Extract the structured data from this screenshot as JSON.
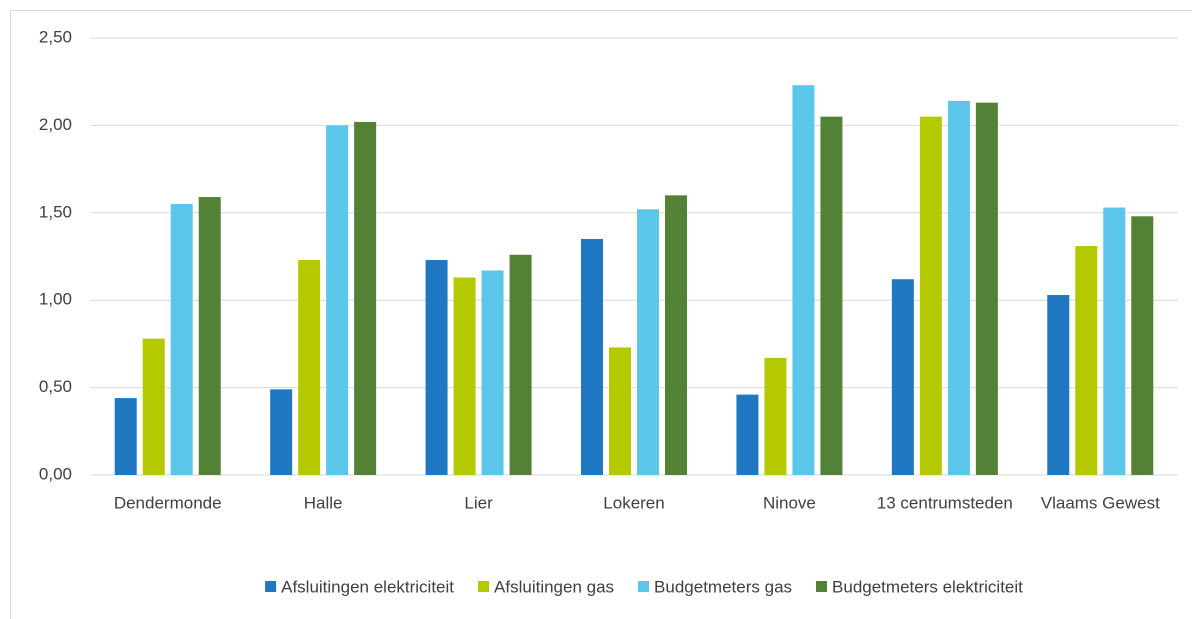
{
  "chart_data": {
    "type": "bar",
    "categories": [
      "Dendermonde",
      "Halle",
      "Lier",
      "Lokeren",
      "Ninove",
      "13 centrumsteden",
      "Vlaams Gewest"
    ],
    "series": [
      {
        "name": "Afsluitingen elektriciteit",
        "color": "#1f78c1",
        "values": [
          0.44,
          0.49,
          1.23,
          1.35,
          0.46,
          1.12,
          1.03
        ]
      },
      {
        "name": "Afsluitingen gas",
        "color": "#b5c900",
        "values": [
          0.78,
          1.23,
          1.13,
          0.73,
          0.67,
          2.05,
          1.31
        ]
      },
      {
        "name": "Budgetmeters gas",
        "color": "#5bc5ea",
        "values": [
          1.55,
          2.0,
          1.17,
          1.52,
          2.23,
          2.14,
          1.53
        ]
      },
      {
        "name": "Budgetmeters elektriciteit",
        "color": "#538135",
        "values": [
          1.59,
          2.02,
          1.26,
          1.6,
          2.05,
          2.13,
          1.48
        ]
      }
    ],
    "ylim": [
      0,
      2.5
    ],
    "yticks": [
      {
        "value": 0,
        "label": "0,00"
      },
      {
        "value": 0.5,
        "label": "0,50"
      },
      {
        "value": 1,
        "label": "1,00"
      },
      {
        "value": 1.5,
        "label": "1,50"
      },
      {
        "value": 2,
        "label": "2,00"
      },
      {
        "value": 2.5,
        "label": "2,50"
      }
    ],
    "grid": true,
    "legend": "bottom"
  }
}
